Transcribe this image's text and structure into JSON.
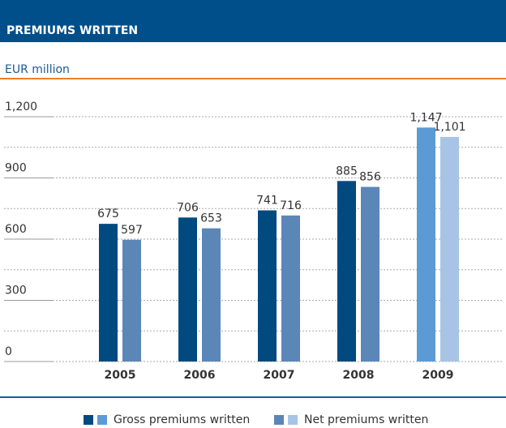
{
  "chart_data": {
    "type": "bar",
    "title": "PREMIUMS WRITTEN",
    "subtitle": "EUR million",
    "categories": [
      "2005",
      "2006",
      "2007",
      "2008",
      "2009"
    ],
    "series": [
      {
        "name": "Gross premiums written",
        "colors": [
          "#004a80",
          "#004a80",
          "#004a80",
          "#004a80",
          "#5b9bd5"
        ],
        "values": [
          675,
          706,
          741,
          885,
          1147
        ],
        "value_labels": [
          "675",
          "706",
          "741",
          "885",
          "1,147"
        ]
      },
      {
        "name": "Net premiums written",
        "colors": [
          "#5b86b8",
          "#5b86b8",
          "#5b86b8",
          "#5b86b8",
          "#a7c4e6"
        ],
        "values": [
          597,
          653,
          716,
          856,
          1101
        ],
        "value_labels": [
          "597",
          "653",
          "716",
          "856",
          "1,101"
        ]
      }
    ],
    "ylim": [
      0,
      1200
    ],
    "yticks": [
      0,
      300,
      600,
      900,
      {
        "value": 1200,
        "label": "1,200"
      }
    ],
    "minor_yticks": [
      150,
      450,
      750,
      1050
    ],
    "grid": true
  }
}
